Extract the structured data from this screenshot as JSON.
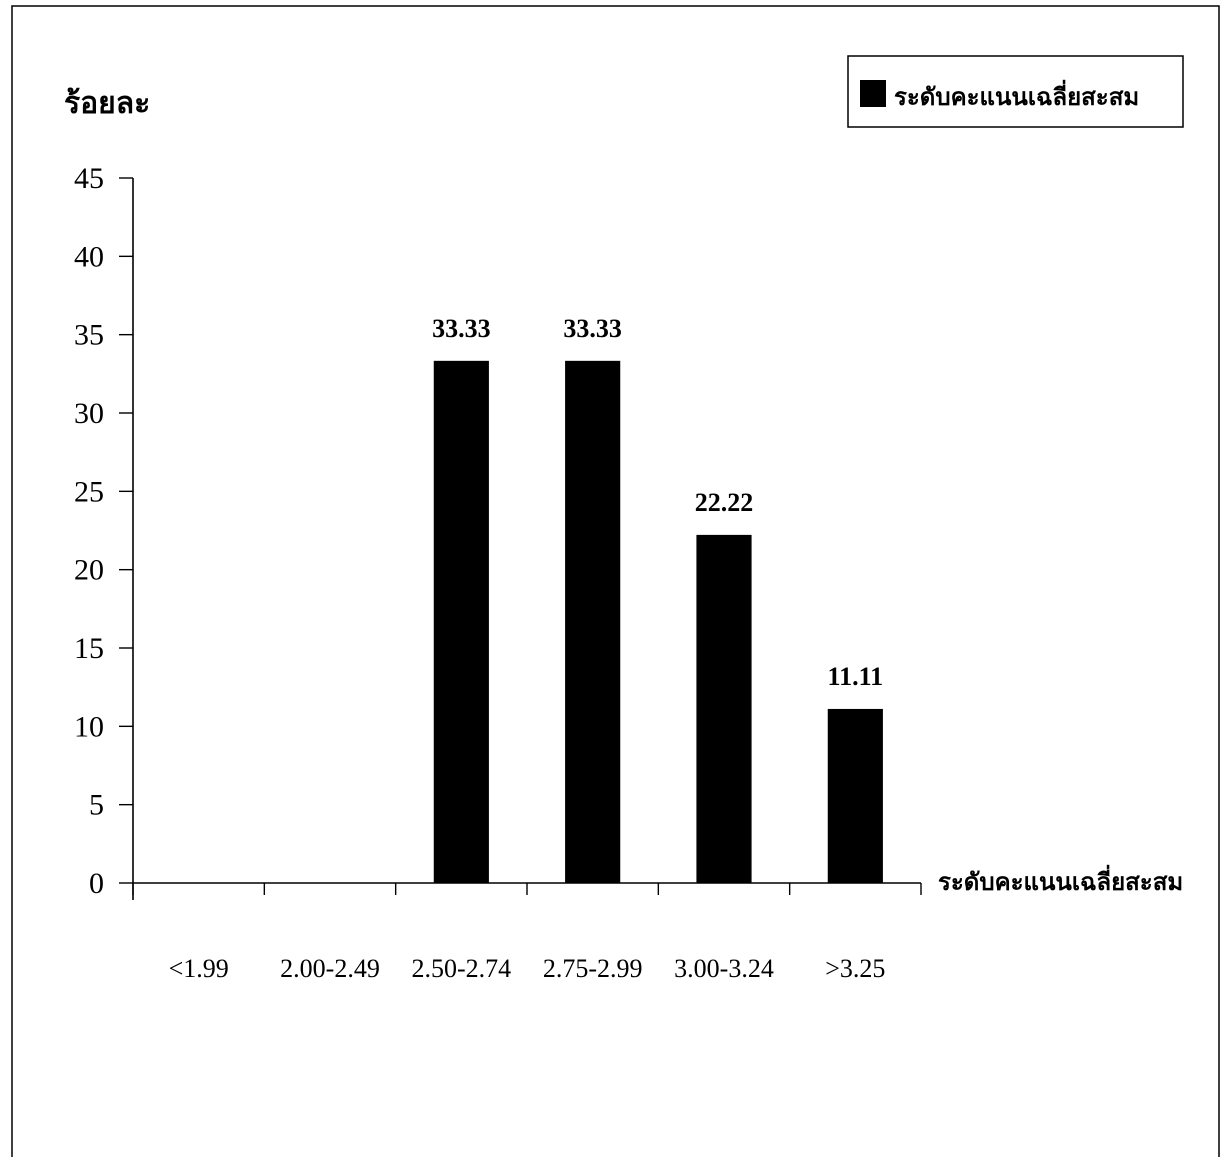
{
  "chart_data": {
    "type": "bar",
    "title": "",
    "ylabel": "ร้อยละ",
    "xlabel": "ระดับคะแนนเฉลี่ยสะสม",
    "categories": [
      "<1.99",
      "2.00-2.49",
      "2.50-2.74",
      "2.75-2.99",
      "3.00-3.24",
      ">3.25"
    ],
    "series": [
      {
        "name": "ระดับคะแนนเฉลี่ยสะสม",
        "values": [
          0,
          0,
          33.33,
          33.33,
          22.22,
          11.11
        ],
        "data_labels": [
          "",
          "",
          "33.33",
          "33.33",
          "22.22",
          "11.11"
        ],
        "color": "#000000"
      }
    ],
    "ylim": [
      0,
      45
    ],
    "yticks": [
      0,
      5,
      10,
      15,
      20,
      25,
      30,
      35,
      40,
      45
    ],
    "grid": false,
    "legend_position": "top-right"
  }
}
